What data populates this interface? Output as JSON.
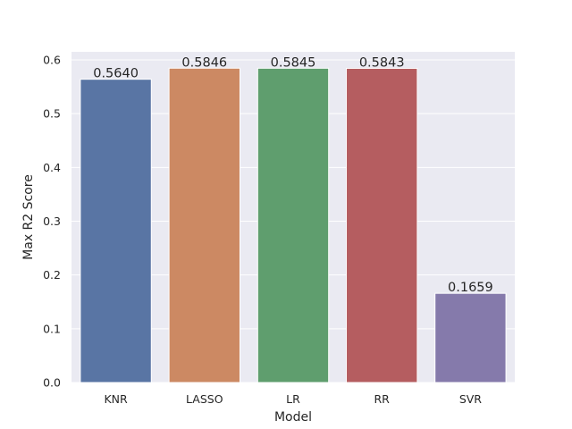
{
  "chart_data": {
    "type": "bar",
    "title": "",
    "xlabel": "Model",
    "ylabel": "Max R2 Score",
    "categories": [
      "KNR",
      "LASSO",
      "LR",
      "RR",
      "SVR"
    ],
    "values": [
      0.564,
      0.5846,
      0.5845,
      0.5843,
      0.1659
    ],
    "value_labels": [
      "0.5640",
      "0.5846",
      "0.5845",
      "0.5843",
      "0.1659"
    ],
    "colors": [
      "#5975a4",
      "#cc8963",
      "#5f9e6e",
      "#b55d60",
      "#857aab"
    ],
    "ylim": [
      0,
      0.615
    ],
    "yticks": [
      0.0,
      0.1,
      0.2,
      0.3,
      0.4,
      0.5,
      0.6
    ],
    "ytick_labels": [
      "0.0",
      "0.1",
      "0.2",
      "0.3",
      "0.4",
      "0.5",
      "0.6"
    ],
    "grid": true,
    "background": "#eaeaf2",
    "grid_color": "#ffffff",
    "legend": "none"
  }
}
